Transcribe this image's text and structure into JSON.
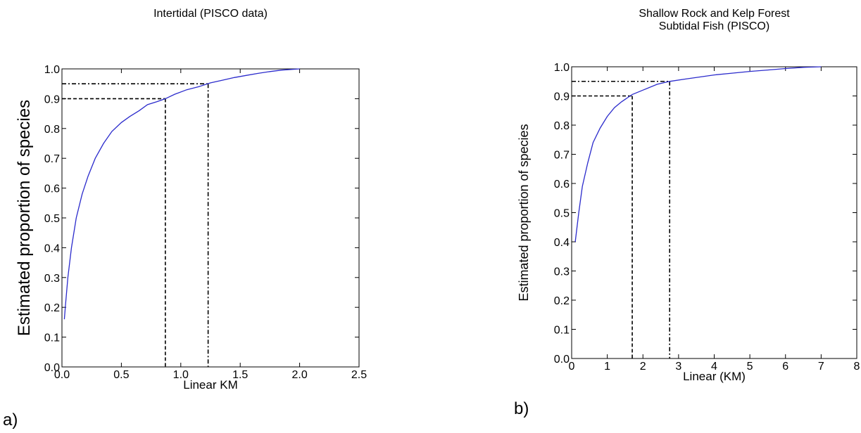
{
  "chart_data": [
    {
      "type": "line",
      "panel_label": "a)",
      "title_lines": [
        "Intertidal  (PISCO data)"
      ],
      "xlabel": "Linear KM",
      "ylabel": "Estimated proportion of species",
      "xlim": [
        0.0,
        2.5
      ],
      "ylim": [
        0.0,
        1.0
      ],
      "xticks": [
        "0.0",
        "0.5",
        "1.0",
        "1.5",
        "2.0",
        "2.5"
      ],
      "yticks": [
        "0.0",
        "0.1",
        "0.2",
        "0.3",
        "0.4",
        "0.5",
        "0.6",
        "0.7",
        "0.8",
        "0.9",
        "1.0"
      ],
      "grid": false,
      "line_color": "#2b2bcc",
      "series": [
        {
          "x": [
            0.02,
            0.03,
            0.05,
            0.08,
            0.12,
            0.17,
            0.22,
            0.28,
            0.35,
            0.42,
            0.5,
            0.57,
            0.65,
            0.72,
            0.8,
            0.87,
            0.95,
            1.05,
            1.15,
            1.25,
            1.35,
            1.45,
            1.55,
            1.65,
            1.75,
            1.85,
            2.0
          ],
          "y": [
            0.16,
            0.21,
            0.3,
            0.4,
            0.5,
            0.58,
            0.64,
            0.7,
            0.75,
            0.79,
            0.82,
            0.84,
            0.86,
            0.88,
            0.89,
            0.9,
            0.915,
            0.93,
            0.94,
            0.953,
            0.962,
            0.971,
            0.978,
            0.985,
            0.991,
            0.996,
            1.0
          ]
        }
      ],
      "reference_lines": [
        {
          "x": 0.87,
          "y": 0.9,
          "style": "dashed"
        },
        {
          "x": 1.23,
          "y": 0.95,
          "style": "dashdot"
        }
      ]
    },
    {
      "type": "line",
      "panel_label": "b)",
      "title_lines": [
        "Shallow Rock and Kelp Forest",
        "Subtidal Fish (PISCO)"
      ],
      "xlabel": "Linear  (KM)",
      "ylabel": "Estimated proportion of species",
      "xlim": [
        0,
        8
      ],
      "ylim": [
        0.0,
        1.0
      ],
      "xticks": [
        "0",
        "1",
        "2",
        "3",
        "4",
        "5",
        "6",
        "7",
        "8"
      ],
      "yticks": [
        "0.0",
        "0.1",
        "0.2",
        "0.3",
        "0.4",
        "0.5",
        "0.6",
        "0.7",
        "0.8",
        "0.9",
        "1.0"
      ],
      "grid": false,
      "line_color": "#2b2bcc",
      "series": [
        {
          "x": [
            0.1,
            0.2,
            0.3,
            0.45,
            0.6,
            0.8,
            1.0,
            1.2,
            1.4,
            1.7,
            2.0,
            2.4,
            2.75,
            3.2,
            3.6,
            4.0,
            4.5,
            5.0,
            5.5,
            6.0,
            6.5,
            7.0
          ],
          "y": [
            0.4,
            0.5,
            0.59,
            0.67,
            0.74,
            0.79,
            0.83,
            0.86,
            0.88,
            0.905,
            0.92,
            0.94,
            0.95,
            0.958,
            0.965,
            0.972,
            0.978,
            0.984,
            0.989,
            0.994,
            0.998,
            1.0
          ]
        }
      ],
      "reference_lines": [
        {
          "x": 1.7,
          "y": 0.9,
          "style": "dashed"
        },
        {
          "x": 2.75,
          "y": 0.95,
          "style": "dashdot"
        }
      ]
    }
  ]
}
